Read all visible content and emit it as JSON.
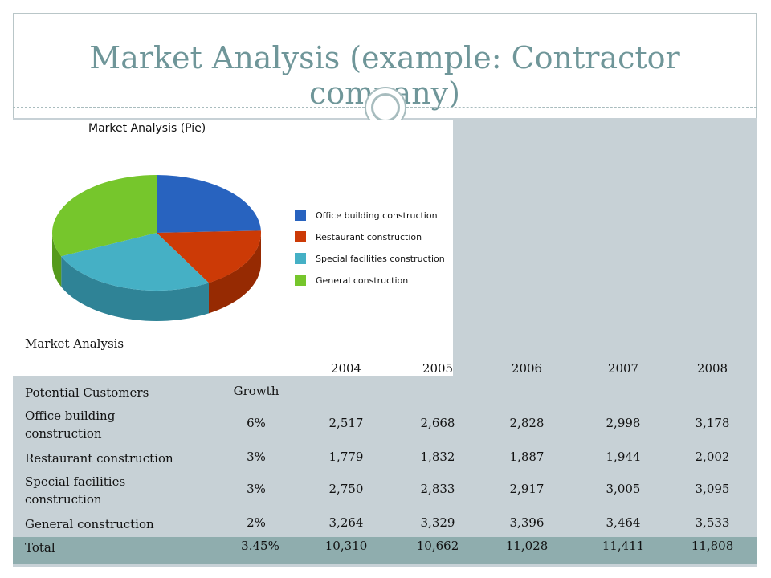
{
  "slide": {
    "title": "Market Analysis (example: Contractor company)"
  },
  "chart_data": {
    "type": "pie",
    "title": "Market Analysis (Pie)",
    "categories": [
      "Office building construction",
      "Restaurant construction",
      "Special facilities construction",
      "General construction"
    ],
    "values": [
      2517,
      1779,
      2750,
      3264
    ],
    "colors": [
      "#2863bf",
      "#cc3a06",
      "#45b0c5",
      "#76c62c"
    ],
    "side_colors": [
      "#1c4a93",
      "#962a02",
      "#2f8396",
      "#559a1c"
    ],
    "legend": "right"
  },
  "table": {
    "title": "Market Analysis",
    "years": [
      "2004",
      "2005",
      "2006",
      "2007",
      "2008"
    ],
    "header_label": "Potential Customers",
    "growth_label": "Growth",
    "rows": [
      {
        "label": "Office building construction",
        "growth": "6%",
        "values": [
          "2,517",
          "2,668",
          "2,828",
          "2,998",
          "3,178"
        ]
      },
      {
        "label": "Restaurant construction",
        "growth": "3%",
        "values": [
          "1,779",
          "1,832",
          "1,887",
          "1,944",
          "2,002"
        ]
      },
      {
        "label": "Special facilities construction",
        "growth": "3%",
        "values": [
          "2,750",
          "2,833",
          "2,917",
          "3,005",
          "3,095"
        ]
      },
      {
        "label": "General construction",
        "growth": "2%",
        "values": [
          "3,264",
          "3,329",
          "3,396",
          "3,464",
          "3,533"
        ]
      }
    ],
    "total": {
      "label": "Total",
      "growth": "3.45%",
      "values": [
        "10,310",
        "10,662",
        "11,028",
        "11,411",
        "11,808"
      ]
    }
  }
}
